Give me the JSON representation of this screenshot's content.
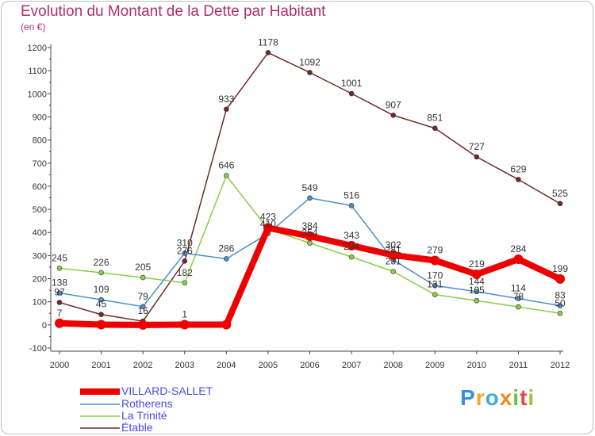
{
  "header": {
    "title": "Evolution du Montant de la Dette par Habitant",
    "subtitle": "(en €)"
  },
  "brand": {
    "name": "Proxiti",
    "colors": [
      "#3b8fd8",
      "#f5a623",
      "#3bb0d8",
      "#f58a1f",
      "#6cc04a",
      "#e84545",
      "#9bc43a"
    ]
  },
  "chart_data": {
    "type": "line",
    "x": [
      "2000",
      "2001",
      "2002",
      "2003",
      "2004",
      "2005",
      "2006",
      "2007",
      "2008",
      "2009",
      "2010",
      "2011",
      "2012"
    ],
    "ylim": [
      -100,
      1200
    ],
    "yticks": [
      "-100",
      "0",
      "100",
      "200",
      "300",
      "400",
      "500",
      "600",
      "700",
      "800",
      "900",
      "1000",
      "1100",
      "1200"
    ],
    "grid": false,
    "legend": "bottom-left",
    "series": [
      {
        "name": "VILLARD-SALLET",
        "color": "#ee0000",
        "width": 8,
        "marker": 6,
        "values": [
          7,
          1,
          0,
          1,
          1,
          420,
          384,
          343,
          302,
          279,
          219,
          284,
          199
        ],
        "labels": [
          "7",
          "",
          "",
          "1",
          "",
          "",
          "384",
          "343",
          "302",
          "279",
          "219",
          "284",
          "199"
        ]
      },
      {
        "name": "Rotherens",
        "color": "#4a90c8",
        "width": 1.5,
        "marker": 3,
        "values": [
          138,
          109,
          79,
          310,
          286,
          395,
          549,
          516,
          281,
          170,
          144,
          114,
          83
        ],
        "labels": [
          "138",
          "109",
          "79",
          "310",
          "286",
          "",
          "549",
          "516",
          "281",
          "170",
          "144",
          "114",
          "83"
        ]
      },
      {
        "name": "La Trinité",
        "color": "#88d044",
        "width": 1.5,
        "marker": 3,
        "values": [
          245,
          226,
          205,
          182,
          646,
          415,
          354,
          294,
          231,
          131,
          105,
          78,
          50
        ],
        "labels": [
          "245",
          "226",
          "205",
          "182",
          "646",
          "",
          "354",
          "294",
          "231",
          "131",
          "105",
          "78",
          "50"
        ]
      },
      {
        "name": "Étable",
        "color": "#702828",
        "width": 1.5,
        "marker": 3,
        "values": [
          97,
          45,
          16,
          276,
          933,
          1178,
          1092,
          1001,
          907,
          851,
          727,
          629,
          525
        ],
        "labels": [
          "97",
          "45",
          "16",
          "276",
          "933",
          "1178",
          "1092",
          "1001",
          "907",
          "851",
          "727",
          "629",
          "525"
        ]
      }
    ],
    "annotations": [
      "423",
      "410"
    ]
  }
}
